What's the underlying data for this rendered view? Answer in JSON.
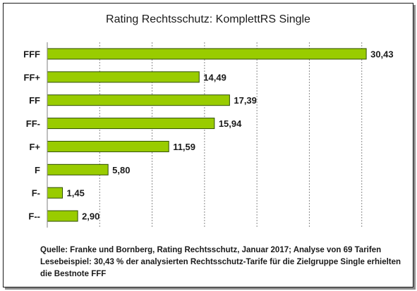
{
  "chart_data": {
    "type": "bar",
    "orientation": "horizontal",
    "title": "Rating Rechtsschutz: KomplettRS Single",
    "categories": [
      "FFF",
      "FF+",
      "FF",
      "FF-",
      "F+",
      "F",
      "F-",
      "F--"
    ],
    "values": [
      30.43,
      14.49,
      17.39,
      15.94,
      11.59,
      5.8,
      1.45,
      2.9
    ],
    "value_labels": [
      "30,43",
      "14,49",
      "17,39",
      "15,94",
      "11,59",
      "5,80",
      "1,45",
      "2,90"
    ],
    "xlim": [
      0,
      35
    ],
    "grid": true,
    "bar_color": "#99cc00",
    "bar_border_color": "#2e4d00"
  },
  "caption": {
    "line1": "Quelle: Franke und Bornberg, Rating Rechtsschutz, Januar 2017; Analyse von 69 Tarifen",
    "line2": "Lesebeispiel: 30,43 % der analysierten Rechtsschutz-Tarife für die Zielgruppe Single erhielten",
    "line3": "die Bestnote FFF"
  }
}
